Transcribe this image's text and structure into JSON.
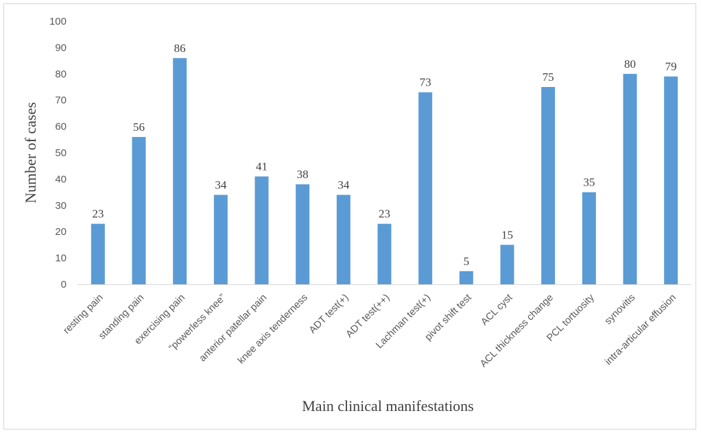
{
  "chart_data": {
    "type": "bar",
    "categories": [
      "resting pain",
      "standing pain",
      "exercising pain",
      "“powerless knee”",
      "anterior patellar pain",
      "knee axis tenderness",
      "ADT test(+)",
      "ADT test(++)",
      "Lachman test(+)",
      "pivot shift test",
      "ACL cyst",
      "ACL thickness change",
      "PCL tortuosity",
      "synovitis",
      "intra-articular effusion"
    ],
    "values": [
      23,
      56,
      86,
      34,
      41,
      38,
      34,
      23,
      73,
      5,
      15,
      75,
      35,
      80,
      79
    ],
    "xlabel": "Main clinical manifestations",
    "ylabel": "Number of cases",
    "ylim": [
      0,
      100
    ],
    "yticks": [
      0,
      10,
      20,
      30,
      40,
      50,
      60,
      70,
      80,
      90,
      100
    ],
    "grid": false,
    "legend": "none",
    "bar_color": "#5B9BD5",
    "axis_color": "#d9d9d9"
  }
}
